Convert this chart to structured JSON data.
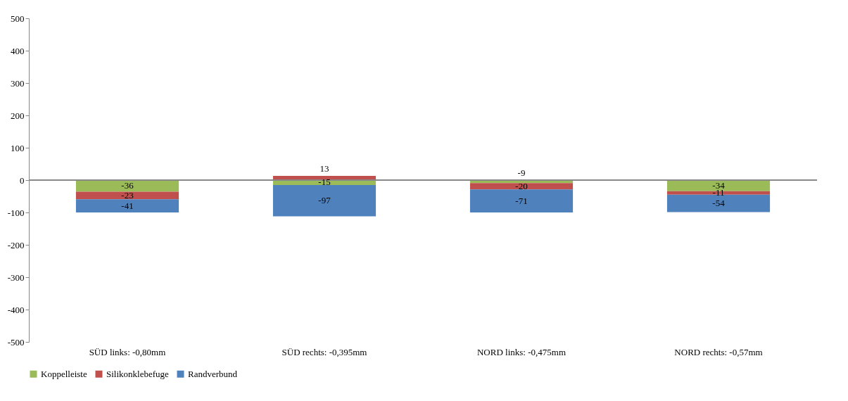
{
  "chart_data": {
    "type": "bar",
    "stacked": true,
    "categories": [
      "SÜD links: -0,80mm",
      "SÜD rechts: -0,395mm",
      "NORD links: -0,475mm",
      "NORD rechts: -0,57mm"
    ],
    "series": [
      {
        "name": "Koppelleiste",
        "color": "#9bbb59",
        "values": [
          -36,
          -15,
          -9,
          -34
        ]
      },
      {
        "name": "Silikonklebefuge",
        "color": "#c0504d",
        "values": [
          -23,
          13,
          -20,
          -11
        ]
      },
      {
        "name": "Randverbund",
        "color": "#4f81bd",
        "values": [
          -41,
          -97,
          -71,
          -54
        ]
      }
    ],
    "ylim": [
      -500,
      500
    ],
    "yticks": [
      -500,
      -400,
      -300,
      -200,
      -100,
      0,
      100,
      200,
      300,
      400,
      500
    ],
    "legend": "bottom",
    "data_labels": true
  }
}
